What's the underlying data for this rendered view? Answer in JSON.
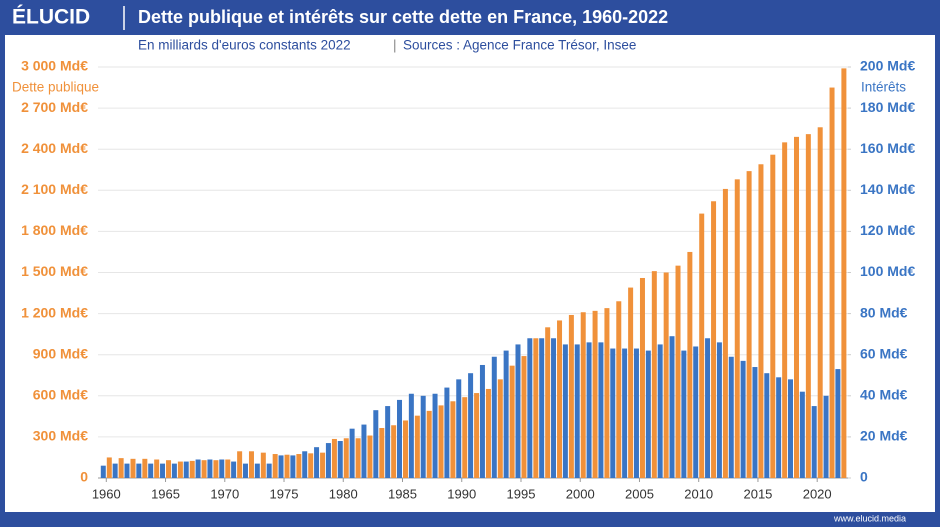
{
  "brand": "ÉLUCID",
  "footer": "www.elucid.media",
  "chart_data": {
    "type": "bar",
    "title": "Dette publique et intérêts sur cette dette en France, 1960-2022",
    "subtitle": "En milliards d'euros constants 2022",
    "source": "Sources : Agence France Trésor, Insee",
    "x": [
      1960,
      1961,
      1962,
      1963,
      1964,
      1965,
      1966,
      1967,
      1968,
      1969,
      1970,
      1971,
      1972,
      1973,
      1974,
      1975,
      1976,
      1977,
      1978,
      1979,
      1980,
      1981,
      1982,
      1983,
      1984,
      1985,
      1986,
      1987,
      1988,
      1989,
      1990,
      1991,
      1992,
      1993,
      1994,
      1995,
      1996,
      1997,
      1998,
      1999,
      2000,
      2001,
      2002,
      2003,
      2004,
      2005,
      2006,
      2007,
      2008,
      2009,
      2010,
      2011,
      2012,
      2013,
      2014,
      2015,
      2016,
      2017,
      2018,
      2019,
      2020,
      2021,
      2022
    ],
    "xlim": [
      1959.3,
      2022.6
    ],
    "xticks": [
      1960,
      1965,
      1970,
      1975,
      1980,
      1985,
      1990,
      1995,
      2000,
      2005,
      2010,
      2015,
      2020
    ],
    "ylim": [
      0,
      3000
    ],
    "yticks": [
      {
        "value": 0,
        "label": "0"
      },
      {
        "value": 300,
        "label": "300 Md€"
      },
      {
        "value": 600,
        "label": "600 Md€"
      },
      {
        "value": 900,
        "label": "900 Md€"
      },
      {
        "value": 1200,
        "label": "1 200 Md€"
      },
      {
        "value": 1500,
        "label": "1 500 Md€"
      },
      {
        "value": 1800,
        "label": "1 800 Md€"
      },
      {
        "value": 2100,
        "label": "2 100 Md€"
      },
      {
        "value": 2400,
        "label": "2 400 Md€"
      },
      {
        "value": 2700,
        "label": "2 700 Md€"
      },
      {
        "value": 3000,
        "label": "3 000 Md€"
      }
    ],
    "y2lim": [
      0,
      200
    ],
    "y2ticks": [
      {
        "value": 0,
        "label": "0"
      },
      {
        "value": 20,
        "label": "20 Md€"
      },
      {
        "value": 40,
        "label": "40 Md€"
      },
      {
        "value": 60,
        "label": "60 Md€"
      },
      {
        "value": 80,
        "label": "80 Md€"
      },
      {
        "value": 100,
        "label": "100 Md€"
      },
      {
        "value": 120,
        "label": "120 Md€"
      },
      {
        "value": 140,
        "label": "140 Md€"
      },
      {
        "value": 160,
        "label": "160 Md€"
      },
      {
        "value": 180,
        "label": "180 Md€"
      },
      {
        "value": 200,
        "label": "200 Md€"
      }
    ],
    "grid": true,
    "series": [
      {
        "name": "Dette publique",
        "color": "#f0913a",
        "values": [
          150,
          145,
          140,
          140,
          135,
          130,
          120,
          125,
          130,
          130,
          135,
          195,
          195,
          185,
          175,
          170,
          175,
          180,
          185,
          285,
          290,
          290,
          310,
          365,
          385,
          420,
          455,
          490,
          530,
          560,
          590,
          620,
          650,
          720,
          820,
          890,
          1020,
          1100,
          1150,
          1190,
          1210,
          1220,
          1240,
          1290,
          1390,
          1460,
          1510,
          1500,
          1550,
          1650,
          1930,
          2020,
          2110,
          2180,
          2240,
          2290,
          2360,
          2450,
          2490,
          2510,
          2560,
          2850,
          2990
        ]
      },
      {
        "name": "Intérêts",
        "color": "#3a75c4",
        "axis": "y2",
        "values": [
          6,
          7,
          7,
          7,
          7,
          7,
          7,
          8,
          9,
          9,
          9,
          8,
          7,
          7,
          7,
          11,
          11,
          13,
          15,
          17,
          18,
          24,
          26,
          33,
          35,
          38,
          41,
          40,
          41,
          44,
          48,
          51,
          55,
          59,
          62,
          65,
          68,
          68,
          68,
          65,
          65,
          66,
          66,
          63,
          63,
          63,
          62,
          65,
          69,
          62,
          64,
          68,
          66,
          59,
          57,
          54,
          51,
          49,
          48,
          42,
          35,
          40,
          53
        ]
      }
    ]
  }
}
